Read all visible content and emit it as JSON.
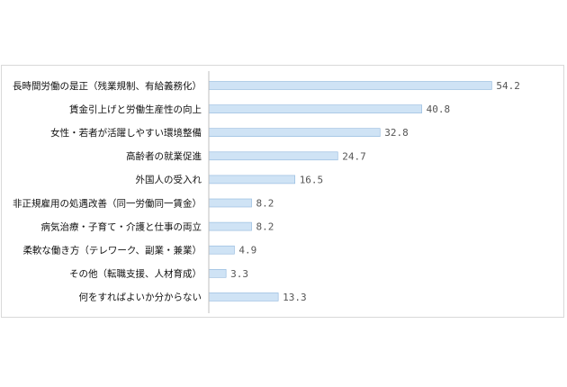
{
  "chart_data": {
    "type": "bar",
    "orientation": "horizontal",
    "categories": [
      "長時間労働の是正（残業規制、有給義務化）",
      "賃金引上げと労働生産性の向上",
      "女性・若者が活躍しやすい環境整備",
      "高齢者の就業促進",
      "外国人の受入れ",
      "非正規雇用の処遇改善（同一労働同一賃金）",
      "病気治療・子育て・介護と仕事の両立",
      "柔軟な働き方（テレワーク、副業・兼業）",
      "その他（転職支援、人材育成）",
      "何をすればよいか分からない"
    ],
    "values": [
      54.2,
      40.8,
      32.8,
      24.7,
      16.5,
      8.2,
      8.2,
      4.9,
      3.3,
      13.3
    ],
    "value_labels": [
      "54.2",
      "40.8",
      "32.8",
      "24.7",
      "16.5",
      "8.2",
      "8.2",
      "4.9",
      "3.3",
      "13.3"
    ],
    "title": "",
    "xlabel": "",
    "ylabel": "",
    "xlim": [
      0,
      60
    ],
    "grid": false,
    "legend": "none",
    "bar_color": "#cfe3f5",
    "bar_border_color": "#8fb6dc",
    "axis_color": "#bfbfbf"
  }
}
